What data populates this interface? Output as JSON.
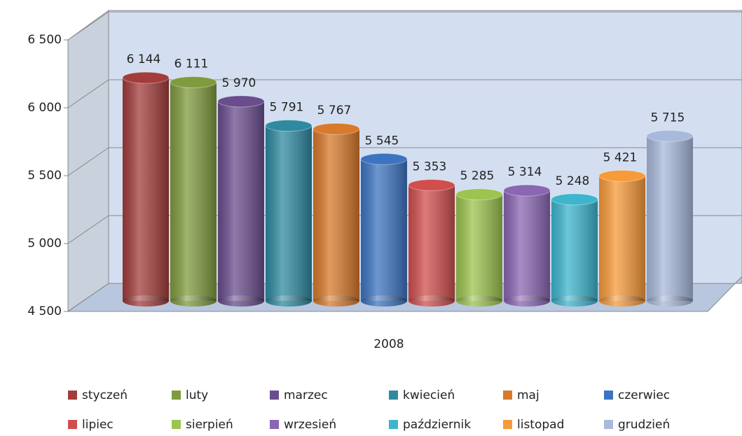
{
  "chart_data": {
    "type": "bar3d",
    "categories": [
      "2008"
    ],
    "ylim": [
      4500,
      6500
    ],
    "yticks": [
      {
        "value": 4500,
        "label": "4 500"
      },
      {
        "value": 5000,
        "label": "5 000"
      },
      {
        "value": 5500,
        "label": "5 500"
      },
      {
        "value": 6000,
        "label": "6 000"
      },
      {
        "value": 6500,
        "label": "6 500"
      }
    ],
    "grid": true,
    "legend": "bottom",
    "series": [
      {
        "name": "styczeń",
        "color": "#a23d3b",
        "values": [
          6144
        ],
        "value_labels": [
          "6 144"
        ]
      },
      {
        "name": "luty",
        "color": "#809b3e",
        "values": [
          6111
        ],
        "value_labels": [
          "6 111"
        ]
      },
      {
        "name": "marzec",
        "color": "#6a4d8e",
        "values": [
          5970
        ],
        "value_labels": [
          "5 970"
        ]
      },
      {
        "name": "kwiecień",
        "color": "#2f8aa1",
        "values": [
          5791
        ],
        "value_labels": [
          "5 791"
        ]
      },
      {
        "name": "maj",
        "color": "#d8792b",
        "values": [
          5767
        ],
        "value_labels": [
          "5 767"
        ]
      },
      {
        "name": "czerwiec",
        "color": "#3d74c1",
        "values": [
          5545
        ],
        "value_labels": [
          "5 545"
        ]
      },
      {
        "name": "lipiec",
        "color": "#d04f4e",
        "values": [
          5353
        ],
        "value_labels": [
          "5 353"
        ]
      },
      {
        "name": "sierpień",
        "color": "#9cc44e",
        "values": [
          5285
        ],
        "value_labels": [
          "5 285"
        ]
      },
      {
        "name": "wrzesień",
        "color": "#8a66b3",
        "values": [
          5314
        ],
        "value_labels": [
          "5 314"
        ]
      },
      {
        "name": "październik",
        "color": "#3db5cd",
        "values": [
          5248
        ],
        "value_labels": [
          "5 248"
        ]
      },
      {
        "name": "listopad",
        "color": "#f79a3a",
        "values": [
          5421
        ],
        "value_labels": [
          "5 421"
        ]
      },
      {
        "name": "grudzień",
        "color": "#a8b9dc",
        "values": [
          5715
        ],
        "value_labels": [
          "5 715"
        ]
      }
    ]
  }
}
